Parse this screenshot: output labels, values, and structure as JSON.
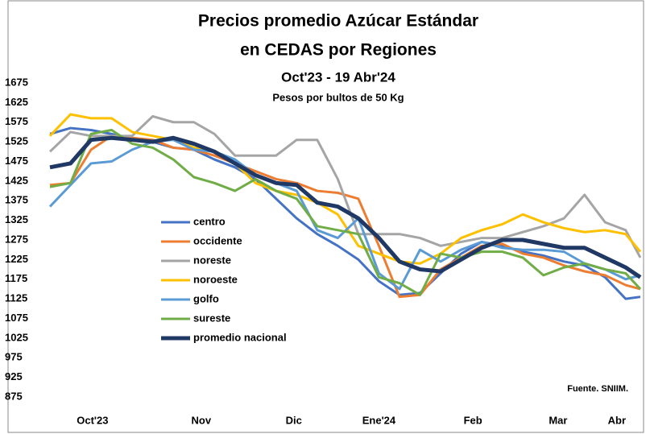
{
  "chart_data": {
    "type": "line",
    "title": [
      "Precios promedio Azúcar Estándar",
      "en CEDAS por Regiones"
    ],
    "subtitle": "Oct'23 - 19 Abr'24",
    "unit_label": "Pesos por bultos de 50 Kg",
    "source": "Fuente. SNIIM.",
    "x": [
      0,
      7,
      14,
      21,
      28,
      35,
      42,
      49,
      56,
      63,
      70,
      77,
      84,
      91,
      98,
      105,
      112,
      119,
      126,
      133,
      140,
      147,
      154,
      161,
      168,
      175,
      182,
      189,
      196,
      201
    ],
    "xlim": [
      0,
      201
    ],
    "xticks": [
      {
        "value": 14.5,
        "label": "Oct'23"
      },
      {
        "value": 51.5,
        "label": "Nov"
      },
      {
        "value": 83,
        "label": "Dic"
      },
      {
        "value": 112,
        "label": "Ene'24"
      },
      {
        "value": 144,
        "label": "Feb"
      },
      {
        "value": 173,
        "label": "Mar"
      },
      {
        "value": 193,
        "label": "Abr"
      }
    ],
    "ylim": [
      875,
      1675
    ],
    "yticks": [
      875,
      925,
      975,
      1025,
      1075,
      1125,
      1175,
      1225,
      1275,
      1325,
      1375,
      1425,
      1475,
      1525,
      1575,
      1625,
      1675
    ],
    "grid": false,
    "series": [
      {
        "name": "centro",
        "color": "#4472c4",
        "width": 3,
        "values": [
          1545,
          1560,
          1555,
          1545,
          1530,
          1525,
          1510,
          1505,
          1480,
          1460,
          1430,
          1380,
          1330,
          1290,
          1260,
          1225,
          1170,
          1135,
          1140,
          1190,
          1240,
          1270,
          1260,
          1245,
          1235,
          1220,
          1210,
          1180,
          1125,
          1130
        ]
      },
      {
        "name": "occidente",
        "color": "#ed7d31",
        "width": 3,
        "values": [
          1415,
          1420,
          1505,
          1540,
          1535,
          1530,
          1510,
          1505,
          1490,
          1470,
          1450,
          1430,
          1420,
          1400,
          1395,
          1380,
          1260,
          1130,
          1135,
          1200,
          1230,
          1260,
          1265,
          1240,
          1230,
          1210,
          1195,
          1185,
          1160,
          1150
        ]
      },
      {
        "name": "noreste",
        "color": "#a5a5a5",
        "width": 3,
        "values": [
          1500,
          1550,
          1540,
          1540,
          1540,
          1590,
          1575,
          1575,
          1545,
          1490,
          1490,
          1490,
          1530,
          1530,
          1430,
          1290,
          1290,
          1290,
          1280,
          1260,
          1270,
          1280,
          1280,
          1295,
          1310,
          1330,
          1390,
          1320,
          1300,
          1230
        ]
      },
      {
        "name": "noroeste",
        "color": "#ffc000",
        "width": 3,
        "values": [
          1540,
          1595,
          1585,
          1585,
          1550,
          1540,
          1530,
          1510,
          1500,
          1470,
          1420,
          1400,
          1390,
          1370,
          1340,
          1260,
          1240,
          1220,
          1215,
          1240,
          1280,
          1300,
          1315,
          1340,
          1320,
          1305,
          1295,
          1300,
          1290,
          1245
        ]
      },
      {
        "name": "golfo",
        "color": "#5b9bd5",
        "width": 3,
        "values": [
          1360,
          1415,
          1470,
          1475,
          1505,
          1525,
          1530,
          1505,
          1500,
          1480,
          1440,
          1420,
          1400,
          1300,
          1280,
          1330,
          1190,
          1150,
          1250,
          1220,
          1250,
          1270,
          1255,
          1250,
          1250,
          1245,
          1215,
          1200,
          1175,
          1185
        ]
      },
      {
        "name": "sureste",
        "color": "#70ad47",
        "width": 3,
        "values": [
          1410,
          1420,
          1545,
          1555,
          1520,
          1510,
          1480,
          1435,
          1420,
          1400,
          1430,
          1400,
          1380,
          1310,
          1300,
          1290,
          1180,
          1165,
          1135,
          1240,
          1230,
          1245,
          1245,
          1230,
          1185,
          1205,
          1215,
          1200,
          1190,
          1150
        ]
      },
      {
        "name": "promedio nacional",
        "color": "#203864",
        "width": 5,
        "values": [
          1460,
          1470,
          1530,
          1535,
          1530,
          1525,
          1535,
          1520,
          1500,
          1470,
          1440,
          1420,
          1415,
          1370,
          1360,
          1330,
          1280,
          1220,
          1200,
          1195,
          1225,
          1255,
          1275,
          1275,
          1265,
          1255,
          1255,
          1230,
          1205,
          1180
        ]
      }
    ]
  }
}
